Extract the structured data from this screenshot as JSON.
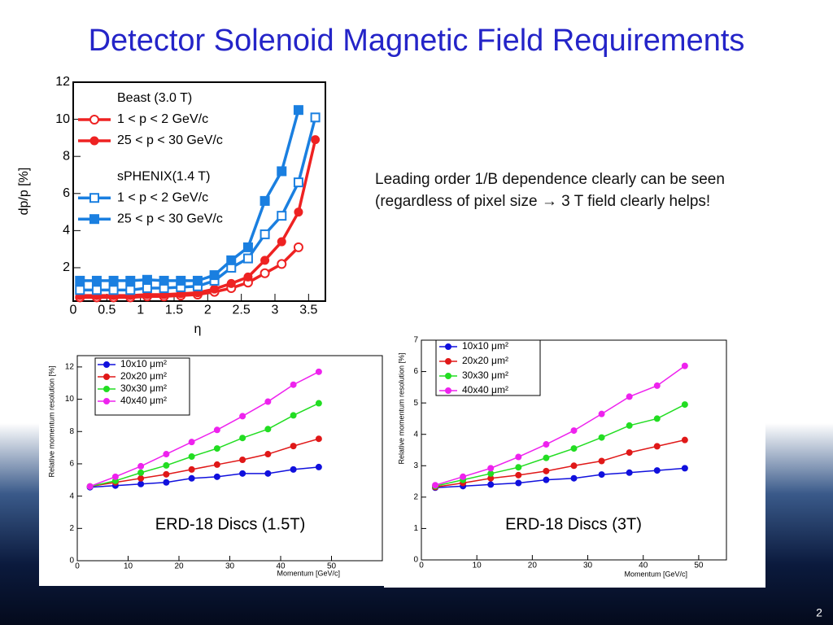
{
  "title": "Detector Solenoid Magnetic Field Requirements",
  "note": [
    "Leading order 1/B dependence clearly can be seen",
    "(regardless of pixel size → 3 T field clearly helps!"
  ],
  "page_number": "2",
  "chart_data": [
    {
      "type": "line",
      "x_label": "η",
      "y_label": "dp/p [%]",
      "x": [
        0.1,
        0.35,
        0.6,
        0.85,
        1.1,
        1.35,
        1.6,
        1.85,
        2.1,
        2.35,
        2.6,
        2.85,
        3.1,
        3.35,
        3.6
      ],
      "legend_titles": [
        "Beast (3.0 T)",
        "sPHENIX(1.4 T)"
      ],
      "series": [
        {
          "name": "1 < p < 2 GeV/c",
          "color": "#ee2222",
          "marker": "circle",
          "filled": false,
          "values": [
            0.4,
            0.4,
            0.4,
            0.4,
            0.45,
            0.45,
            0.5,
            0.55,
            0.7,
            0.9,
            1.2,
            1.7,
            2.2,
            3.1,
            null
          ]
        },
        {
          "name": "25 < p < 30 GeV/c",
          "color": "#ee2222",
          "marker": "circle",
          "filled": true,
          "values": [
            0.5,
            0.5,
            0.5,
            0.5,
            0.55,
            0.55,
            0.6,
            0.65,
            0.85,
            1.15,
            1.5,
            2.4,
            3.4,
            5.0,
            8.9
          ]
        },
        {
          "name": "1 < p < 2 GeV/c",
          "color": "#1a7fe0",
          "marker": "square",
          "filled": false,
          "values": [
            0.8,
            0.8,
            0.8,
            0.8,
            0.9,
            0.9,
            0.95,
            1.0,
            1.3,
            2.0,
            2.5,
            3.8,
            4.8,
            6.6,
            10.1
          ]
        },
        {
          "name": "25 < p < 30 GeV/c",
          "color": "#1a7fe0",
          "marker": "square",
          "filled": true,
          "values": [
            1.3,
            1.3,
            1.3,
            1.3,
            1.35,
            1.3,
            1.3,
            1.3,
            1.6,
            2.4,
            3.1,
            5.6,
            7.2,
            10.5,
            null
          ]
        }
      ],
      "xlim": [
        0,
        3.75
      ],
      "ylim": [
        0.2,
        12
      ],
      "xticks": [
        0,
        0.5,
        1,
        1.5,
        2,
        2.5,
        3,
        3.5
      ],
      "yticks": [
        2,
        4,
        6,
        8,
        10,
        12
      ]
    },
    {
      "type": "line",
      "x_label": "Momentum [GeV/c]",
      "y_label": "Relative momentum resolution [%]",
      "annotation": "ERD-18 Discs (1.5T)",
      "x": [
        2.5,
        7.5,
        12.5,
        17.5,
        22.5,
        27.5,
        32.5,
        37.5,
        42.5,
        47.5
      ],
      "series": [
        {
          "name": "10x10 μm²",
          "color": "#1010dd",
          "marker": "circle",
          "filled": true,
          "values": [
            4.55,
            4.65,
            4.75,
            4.85,
            5.1,
            5.2,
            5.4,
            5.4,
            5.65,
            5.8
          ]
        },
        {
          "name": "20x20 μm²",
          "color": "#e01818",
          "marker": "circle",
          "filled": true,
          "values": [
            4.6,
            4.85,
            5.1,
            5.35,
            5.65,
            5.95,
            6.25,
            6.6,
            7.1,
            7.55
          ]
        },
        {
          "name": "30x30 μm²",
          "color": "#22dd22",
          "marker": "circle",
          "filled": true,
          "values": [
            4.6,
            4.95,
            5.45,
            5.9,
            6.45,
            6.95,
            7.6,
            8.15,
            9.0,
            9.75
          ]
        },
        {
          "name": "40x40 μm²",
          "color": "#ee22ee",
          "marker": "circle",
          "filled": true,
          "values": [
            4.6,
            5.2,
            5.85,
            6.6,
            7.35,
            8.1,
            8.95,
            9.85,
            10.9,
            11.7
          ]
        }
      ],
      "xlim": [
        0,
        60
      ],
      "ylim": [
        0,
        12.7
      ],
      "xticks": [
        0,
        10,
        20,
        30,
        40,
        50
      ],
      "yticks": [
        0,
        2,
        4,
        6,
        8,
        10,
        12
      ]
    },
    {
      "type": "line",
      "x_label": "Momentum [GeV/c]",
      "y_label": "Relative momentum resolution [%]",
      "annotation": "ERD-18 Discs (3T)",
      "x": [
        2.5,
        7.5,
        12.5,
        17.5,
        22.5,
        27.5,
        32.5,
        37.5,
        42.5,
        47.5
      ],
      "series": [
        {
          "name": "10x10 μm²",
          "color": "#1010dd",
          "marker": "circle",
          "filled": true,
          "values": [
            2.3,
            2.35,
            2.4,
            2.45,
            2.55,
            2.6,
            2.72,
            2.78,
            2.85,
            2.92
          ]
        },
        {
          "name": "20x20 μm²",
          "color": "#e01818",
          "marker": "circle",
          "filled": true,
          "values": [
            2.32,
            2.45,
            2.6,
            2.7,
            2.83,
            3.0,
            3.15,
            3.42,
            3.62,
            3.82
          ]
        },
        {
          "name": "30x30 μm²",
          "color": "#22dd22",
          "marker": "circle",
          "filled": true,
          "values": [
            2.35,
            2.55,
            2.75,
            2.95,
            3.25,
            3.55,
            3.9,
            4.28,
            4.5,
            4.95
          ]
        },
        {
          "name": "40x40 μm²",
          "color": "#ee22ee",
          "marker": "circle",
          "filled": true,
          "values": [
            2.38,
            2.65,
            2.92,
            3.28,
            3.68,
            4.12,
            4.65,
            5.2,
            5.55,
            6.18
          ]
        }
      ],
      "xlim": [
        0,
        55
      ],
      "ylim": [
        0,
        7
      ],
      "xticks": [
        0,
        10,
        20,
        30,
        40,
        50
      ],
      "yticks": [
        0,
        1,
        2,
        3,
        4,
        5,
        6,
        7
      ]
    }
  ]
}
